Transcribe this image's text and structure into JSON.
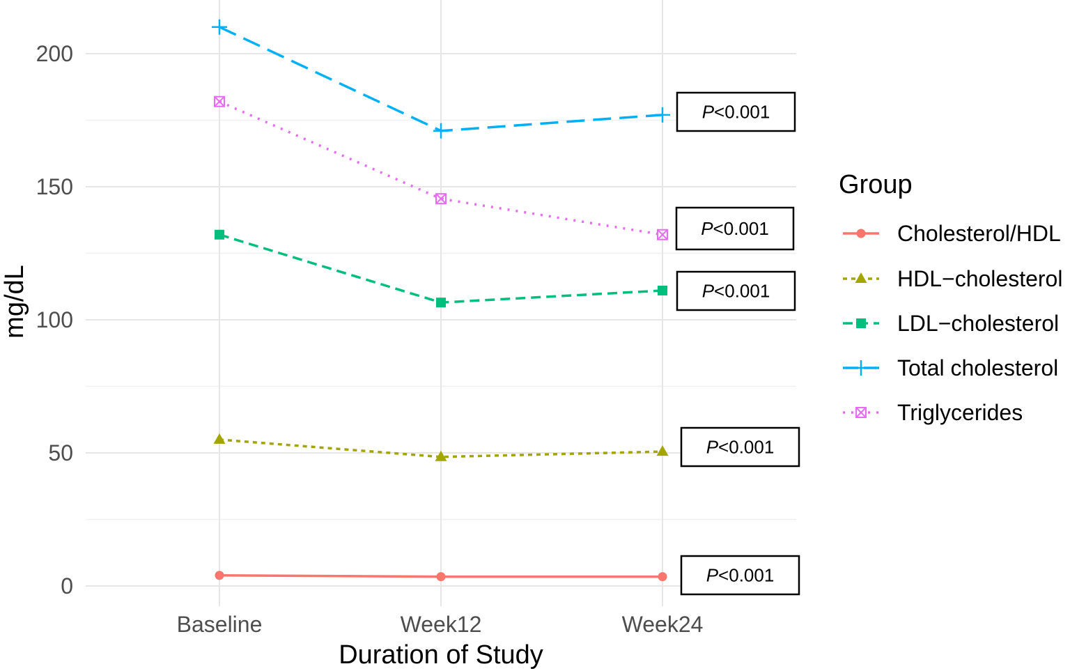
{
  "chart_data": {
    "type": "line",
    "title": "",
    "xlabel": "Duration of Study",
    "ylabel": "mg/dL",
    "categories": [
      "Baseline",
      "Week12",
      "Week24"
    ],
    "ylim": [
      -5,
      215
    ],
    "yticks": [
      0,
      50,
      100,
      150,
      200
    ],
    "legend_title": "Group",
    "legend_position": "right",
    "series": [
      {
        "name": "Cholesterol/HDL",
        "values": [
          4,
          3.5,
          3.5
        ],
        "color": "#F8766D",
        "marker": "circle",
        "dash": "solid",
        "pvalue": "<0.001"
      },
      {
        "name": "HDL−cholesterol",
        "values": [
          55,
          48.5,
          50.5
        ],
        "color": "#A3A500",
        "marker": "triangle",
        "dash": "dotted",
        "pvalue": "<0.001"
      },
      {
        "name": "LDL−cholesterol",
        "values": [
          132,
          106.5,
          111
        ],
        "color": "#00BF7D",
        "marker": "square",
        "dash": "dashed",
        "pvalue": "<0.001"
      },
      {
        "name": "Total cholesterol",
        "values": [
          210,
          171,
          177
        ],
        "color": "#00B0F6",
        "marker": "plus",
        "dash": "longdash",
        "pvalue": "<0.001"
      },
      {
        "name": "Triglycerides",
        "values": [
          182,
          145.5,
          132
        ],
        "color": "#E76BF3",
        "marker": "boxcross",
        "dash": "fine-dotted",
        "pvalue": "<0.001"
      }
    ],
    "annotations": [
      {
        "italic": "P",
        "text": "<0.001"
      },
      {
        "italic": "P",
        "text": "<0.001"
      },
      {
        "italic": "P",
        "text": "<0.001"
      },
      {
        "italic": "P",
        "text": "<0.001"
      },
      {
        "italic": "P",
        "text": "<0.001"
      }
    ]
  }
}
